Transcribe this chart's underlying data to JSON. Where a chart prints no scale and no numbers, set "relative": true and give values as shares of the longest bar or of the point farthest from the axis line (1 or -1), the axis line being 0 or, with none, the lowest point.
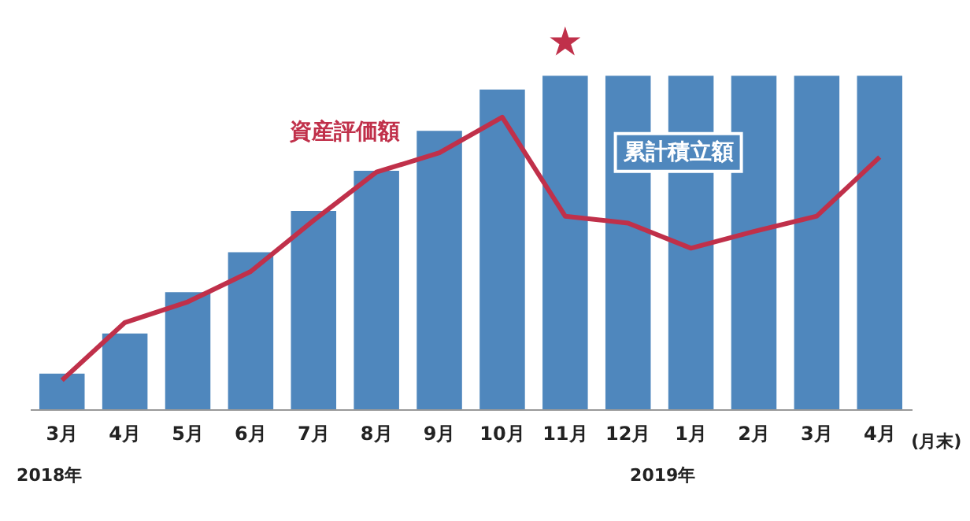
{
  "chart_data": {
    "type": "bar",
    "relative": true,
    "legend": false,
    "grid": false,
    "categories": [
      "3月",
      "4月",
      "5月",
      "6月",
      "7月",
      "8月",
      "9月",
      "10月",
      "11月",
      "12月",
      "1月",
      "2月",
      "3月",
      "4月"
    ],
    "xlabel": "(月末)",
    "annotations": [
      "2018年",
      "2019年"
    ],
    "series": [
      {
        "name": "累計積立額",
        "color": "#4f87bd",
        "values": [
          0.107,
          0.227,
          0.351,
          0.471,
          0.595,
          0.715,
          0.835,
          0.959,
          1,
          1,
          1,
          1,
          1,
          1
        ]
      },
      {
        "name": "資産評価額",
        "type": "line",
        "color": "#c0304a",
        "values": [
          0.087,
          0.26,
          0.322,
          0.413,
          0.566,
          0.711,
          0.769,
          0.876,
          0.579,
          0.558,
          0.483,
          0.533,
          0.579,
          0.756
        ]
      }
    ]
  }
}
